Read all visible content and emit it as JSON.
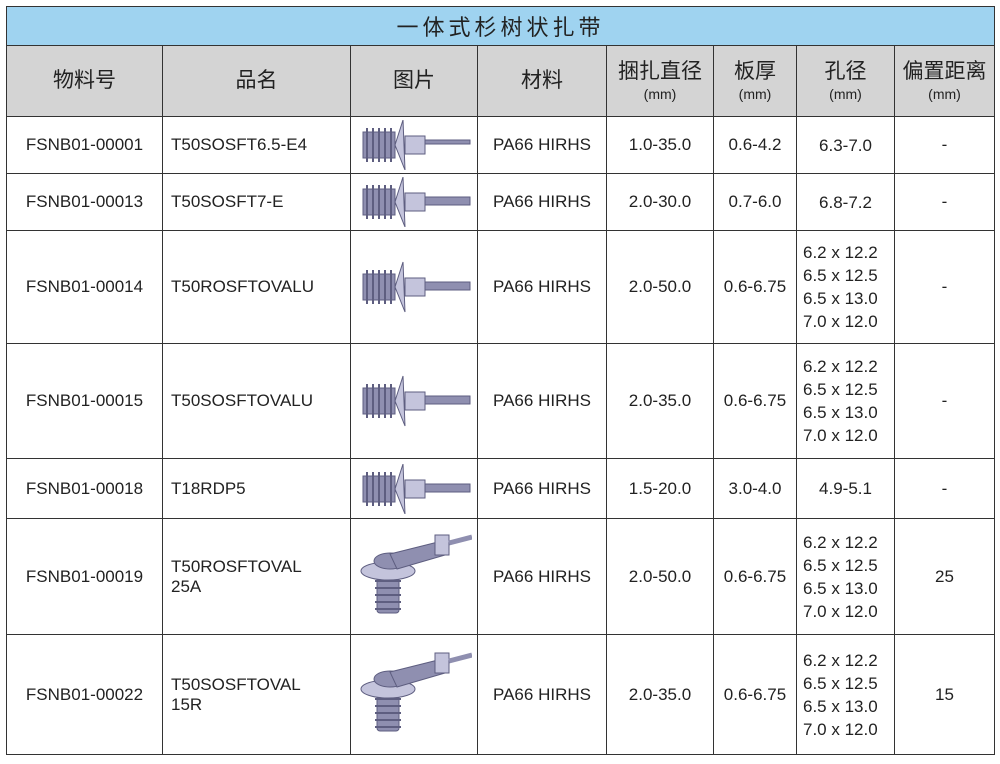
{
  "title": "一体式杉树状扎带",
  "columns": [
    {
      "label": "物料号",
      "unit": ""
    },
    {
      "label": "品名",
      "unit": ""
    },
    {
      "label": "图片",
      "unit": ""
    },
    {
      "label": "材料",
      "unit": ""
    },
    {
      "label": "捆扎直径",
      "unit": "(mm)"
    },
    {
      "label": "板厚",
      "unit": "(mm)"
    },
    {
      "label": "孔径",
      "unit": "(mm)"
    },
    {
      "label": "偏置距离",
      "unit": "(mm)"
    }
  ],
  "rows": [
    {
      "part_no": "FSNB01-00001",
      "name": [
        "T50SOSFT6.5-E4"
      ],
      "image": "tree-clip-angled",
      "material": "PA66 HIRHS",
      "bundle": "1.0-35.0",
      "panel": "0.6-4.2",
      "hole": [
        "6.3-7.0"
      ],
      "offset": "-"
    },
    {
      "part_no": "FSNB01-00013",
      "name": [
        "T50SOSFT7-E"
      ],
      "image": "tree-clip-straight",
      "material": "PA66 HIRHS",
      "bundle": "2.0-30.0",
      "panel": "0.7-6.0",
      "hole": [
        "6.8-7.2"
      ],
      "offset": "-"
    },
    {
      "part_no": "FSNB01-00014",
      "name": [
        "T50ROSFTOVALU"
      ],
      "image": "tree-clip-oval",
      "material": "PA66 HIRHS",
      "bundle": "2.0-50.0",
      "panel": "0.6-6.75",
      "hole": [
        "6.2 x 12.2",
        "6.5 x 12.5",
        "6.5 x 13.0",
        "7.0 x 12.0"
      ],
      "offset": "-"
    },
    {
      "part_no": "FSNB01-00015",
      "name": [
        "T50SOSFTOVALU"
      ],
      "image": "tree-clip-oval",
      "material": "PA66 HIRHS",
      "bundle": "2.0-35.0",
      "panel": "0.6-6.75",
      "hole": [
        "6.2 x 12.2",
        "6.5 x 12.5",
        "6.5 x 13.0",
        "7.0 x 12.0"
      ],
      "offset": "-"
    },
    {
      "part_no": "FSNB01-00018",
      "name": [
        "T18RDP5"
      ],
      "image": "tree-clip-straight",
      "material": "PA66 HIRHS",
      "bundle": "1.5-20.0",
      "panel": "3.0-4.0",
      "hole": [
        "4.9-5.1"
      ],
      "offset": "-"
    },
    {
      "part_no": "FSNB01-00019",
      "name": [
        "T50ROSFTOVAL",
        "25A"
      ],
      "image": "offset-tree-clip",
      "material": "PA66 HIRHS",
      "bundle": "2.0-50.0",
      "panel": "0.6-6.75",
      "hole": [
        "6.2 x 12.2",
        "6.5 x 12.5",
        "6.5 x 13.0",
        "7.0 x 12.0"
      ],
      "offset": "25"
    },
    {
      "part_no": "FSNB01-00022",
      "name": [
        "T50SOSFTOVAL",
        "15R"
      ],
      "image": "offset-tree-clip",
      "material": "PA66 HIRHS",
      "bundle": "2.0-35.0",
      "panel": "0.6-6.75",
      "hole": [
        "6.2 x 12.2",
        "6.5 x 12.5",
        "6.5 x 13.0",
        "7.0 x 12.0"
      ],
      "offset": "15"
    }
  ],
  "colors": {
    "title_bg": "#9fd3f0",
    "header_bg": "#d4d4d4",
    "part": "#8f8fb0"
  }
}
